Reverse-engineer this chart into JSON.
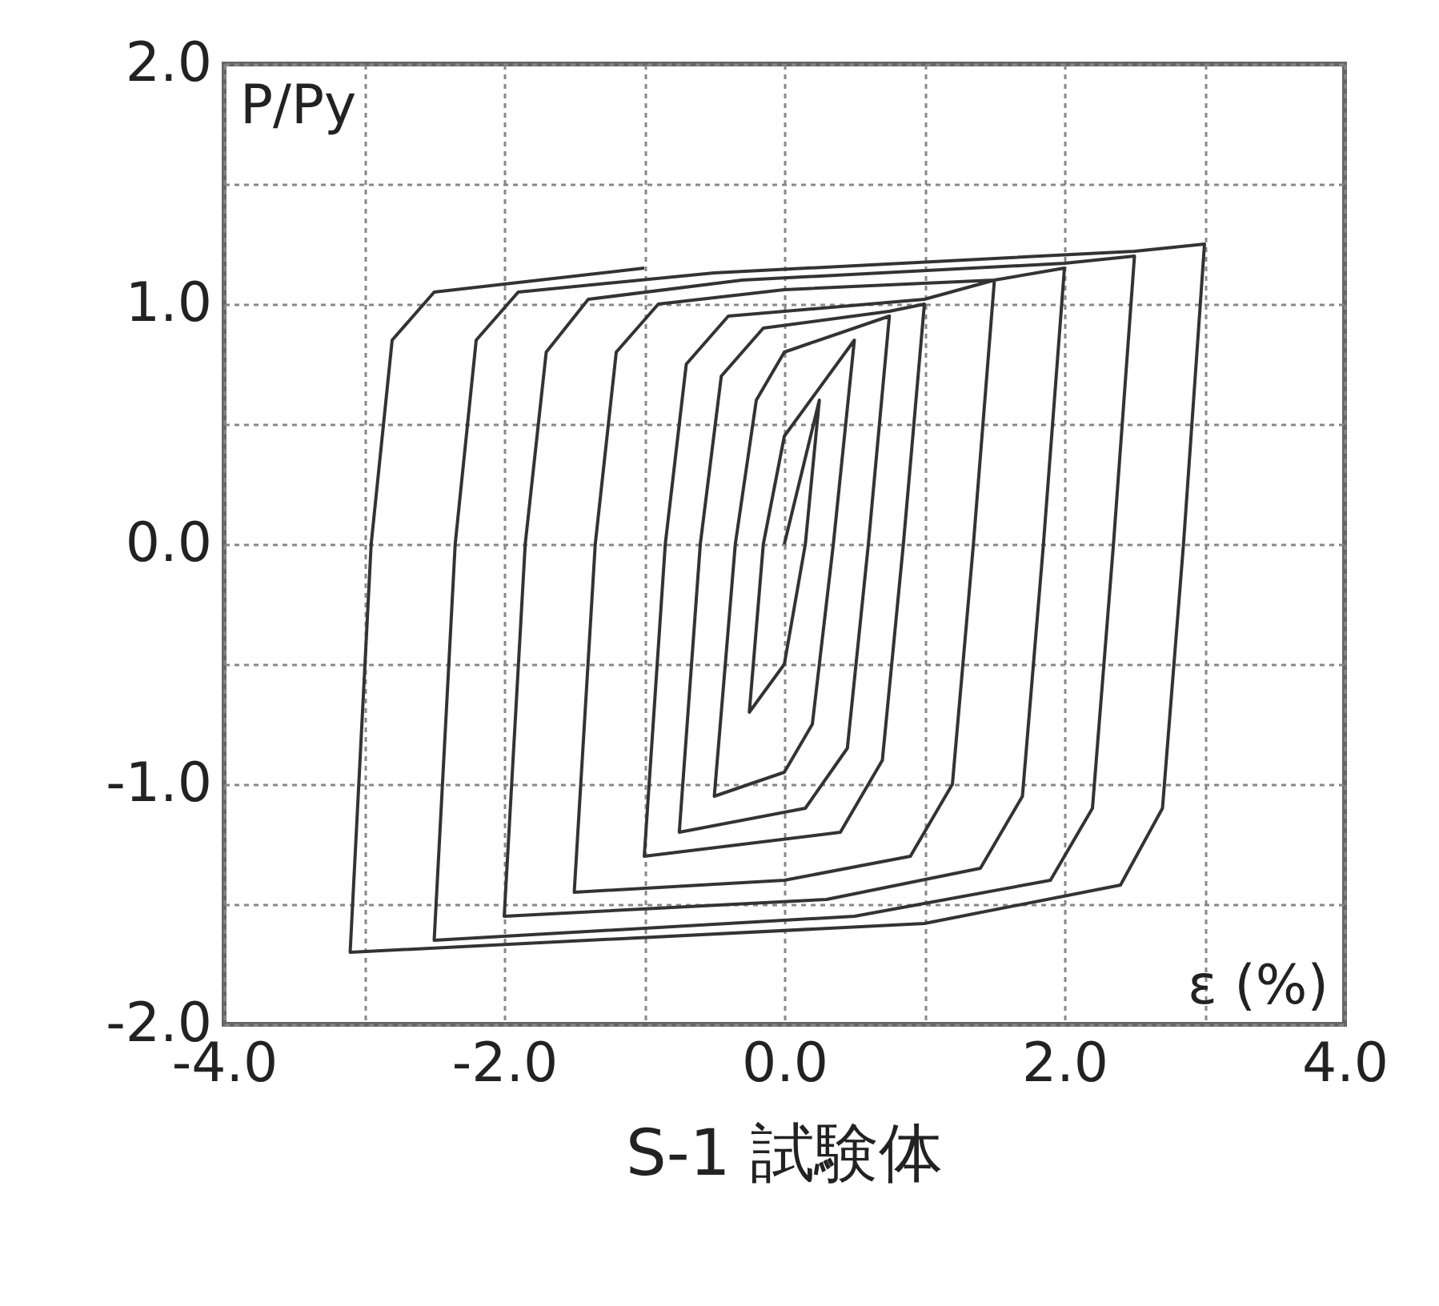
{
  "chart_data": {
    "type": "line",
    "title": "S-1 試験体",
    "xlabel": "ε (%)",
    "ylabel": "P/Py",
    "xlim": [
      -4,
      4
    ],
    "ylim": [
      -2,
      2
    ],
    "xticks": [
      {
        "value": -4,
        "label": "-4.0"
      },
      {
        "value": -3,
        "label": null
      },
      {
        "value": -2,
        "label": "-2.0"
      },
      {
        "value": -1,
        "label": null
      },
      {
        "value": 0,
        "label": "0.0"
      },
      {
        "value": 1,
        "label": null
      },
      {
        "value": 2,
        "label": "2.0"
      },
      {
        "value": 3,
        "label": null
      },
      {
        "value": 4,
        "label": "4.0"
      }
    ],
    "yticks": [
      {
        "value": -2,
        "label": "-2.0"
      },
      {
        "value": -1.5,
        "label": null
      },
      {
        "value": -1,
        "label": "-1.0"
      },
      {
        "value": -0.5,
        "label": null
      },
      {
        "value": 0,
        "label": "0.0"
      },
      {
        "value": 0.5,
        "label": null
      },
      {
        "value": 1,
        "label": "1.0"
      },
      {
        "value": 1.5,
        "label": null
      },
      {
        "value": 2,
        "label": "2.0"
      }
    ],
    "grid": true,
    "series": [
      {
        "color": "#333333",
        "x": [
          0,
          0.25,
          0.15,
          0.0,
          -0.25,
          -0.15,
          0.0,
          0.5,
          0.35,
          0.2,
          0.0,
          -0.5,
          -0.35,
          -0.2,
          0.0,
          0.75,
          0.6,
          0.45,
          0.15,
          -0.75,
          -0.6,
          -0.45,
          -0.15,
          0.75,
          1.0,
          0.85,
          0.7,
          0.4,
          -1.0,
          -0.85,
          -0.7,
          -0.4,
          1.0,
          1.5,
          1.35,
          1.2,
          0.9,
          0.0,
          -1.5,
          -1.35,
          -1.2,
          -0.9,
          0.0,
          1.5,
          2.0,
          1.85,
          1.7,
          1.4,
          0.3,
          -2.0,
          -1.85,
          -1.7,
          -1.4,
          -0.3,
          2.0,
          2.5,
          2.35,
          2.2,
          1.9,
          0.5,
          -2.5,
          -2.35,
          -2.2,
          -1.9,
          -0.5,
          2.5,
          3.0,
          2.85,
          2.7,
          2.4,
          1.0,
          -3.1,
          -2.95,
          -2.8,
          -2.5,
          -1.0
        ],
        "values": [
          0,
          0.6,
          0,
          -0.5,
          -0.7,
          0,
          0.45,
          0.85,
          0,
          -0.75,
          -0.95,
          -1.05,
          0,
          0.6,
          0.8,
          0.95,
          0,
          -0.85,
          -1.1,
          -1.2,
          0,
          0.7,
          0.9,
          0.97,
          1.0,
          0,
          -0.9,
          -1.2,
          -1.3,
          0,
          0.75,
          0.95,
          1.02,
          1.1,
          0,
          -1.0,
          -1.3,
          -1.4,
          -1.45,
          0,
          0.8,
          1.0,
          1.06,
          1.1,
          1.15,
          0,
          -1.05,
          -1.35,
          -1.48,
          -1.55,
          0,
          0.8,
          1.02,
          1.1,
          1.17,
          1.2,
          0,
          -1.1,
          -1.4,
          -1.55,
          -1.65,
          0,
          0.85,
          1.05,
          1.13,
          1.22,
          1.25,
          0,
          -1.1,
          -1.42,
          -1.58,
          -1.7,
          0,
          0.85,
          1.05,
          1.15
        ]
      }
    ]
  }
}
